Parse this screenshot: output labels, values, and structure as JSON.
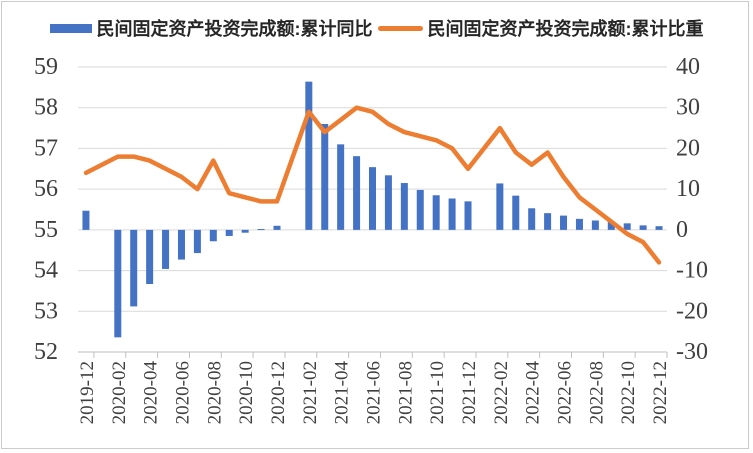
{
  "chart_data": {
    "type": "combo_bar_line",
    "title": "",
    "legend_position": "top",
    "grid_on": true,
    "grid_color": "#D9D9D9",
    "axis_color": "#BFBFBF",
    "tick_label_color": "#404040",
    "categories": [
      "2019-12",
      "2020-01",
      "2020-02",
      "2020-03",
      "2020-04",
      "2020-05",
      "2020-06",
      "2020-07",
      "2020-08",
      "2020-09",
      "2020-10",
      "2020-11",
      "2020-12",
      "2021-01",
      "2021-02",
      "2021-03",
      "2021-04",
      "2021-05",
      "2021-06",
      "2021-07",
      "2021-08",
      "2021-09",
      "2021-10",
      "2021-11",
      "2021-12",
      "2022-01",
      "2022-02",
      "2022-03",
      "2022-04",
      "2022-05",
      "2022-06",
      "2022-07",
      "2022-08",
      "2022-09",
      "2022-10",
      "2022-11",
      "2022-12"
    ],
    "x_label_every": 2,
    "left_axis": {
      "min": 52,
      "max": 59,
      "step": 1
    },
    "right_axis": {
      "min": -30,
      "max": 40,
      "step": 10
    },
    "series": [
      {
        "name": "民间固定资产投资完成额:累计同比",
        "type": "bar",
        "axis": "right",
        "color": "#4472C4",
        "values": [
          4.7,
          null,
          -26.4,
          -18.8,
          -13.3,
          -9.6,
          -7.3,
          -5.7,
          -2.8,
          -1.5,
          -0.7,
          0.2,
          1.0,
          null,
          36.4,
          26.0,
          21.0,
          18.1,
          15.4,
          13.4,
          11.5,
          9.8,
          8.5,
          7.7,
          7.0,
          null,
          11.4,
          8.4,
          5.3,
          4.1,
          3.5,
          2.7,
          2.3,
          2.0,
          1.6,
          1.1,
          0.9
        ]
      },
      {
        "name": "民间固定资产投资完成额:累计比重",
        "type": "line",
        "axis": "left",
        "color": "#ED7D31",
        "values": [
          56.4,
          null,
          56.8,
          56.8,
          56.7,
          56.5,
          56.3,
          56.0,
          56.7,
          55.9,
          55.8,
          55.7,
          55.7,
          null,
          57.9,
          57.4,
          57.7,
          58.0,
          57.9,
          57.6,
          57.4,
          57.3,
          57.2,
          57.0,
          56.5,
          null,
          57.5,
          56.9,
          56.6,
          56.9,
          56.3,
          55.8,
          55.5,
          55.2,
          54.9,
          54.7,
          54.2
        ]
      }
    ]
  }
}
